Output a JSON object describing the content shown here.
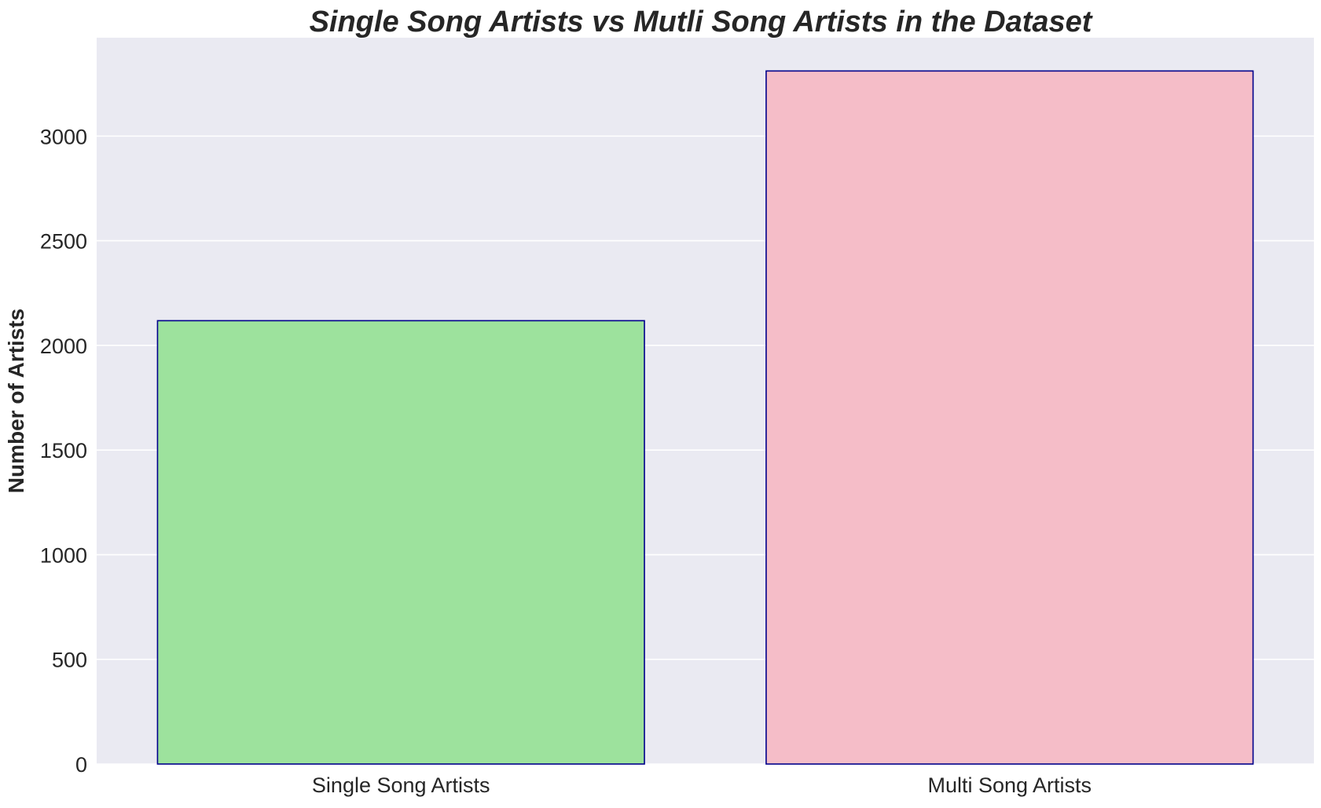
{
  "chart_data": {
    "type": "bar",
    "title": "Single Song Artists vs Mutli Song Artists in the Dataset",
    "xlabel": "",
    "ylabel": "Number of Artists",
    "categories": [
      "Single Song Artists",
      "Multi Song Artists"
    ],
    "values": [
      2118,
      3311
    ],
    "bar_colors": [
      "#9de29d",
      "#f5bdc8"
    ],
    "bar_edge_color": "#00008b",
    "ylim": [
      0,
      3470
    ],
    "yticks": [
      0,
      500,
      1000,
      1500,
      2000,
      2500,
      3000
    ],
    "grid": true,
    "grid_axis": "y",
    "background_color": "#eaeaf2",
    "grid_color": "#ffffff"
  }
}
